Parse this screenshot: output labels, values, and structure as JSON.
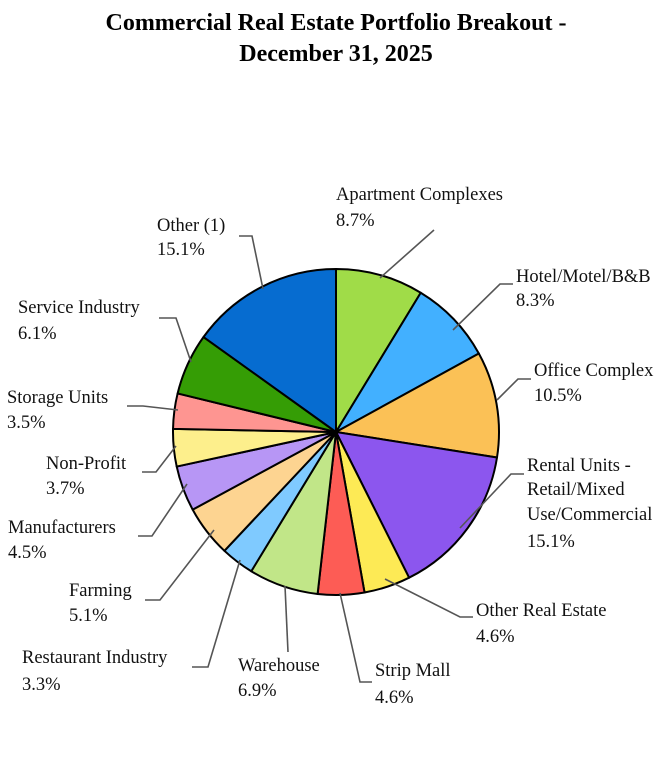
{
  "chart_data": {
    "type": "pie",
    "title_line1": "Commercial Real Estate Portfolio Breakout -",
    "title_line2": "December 31, 2025",
    "slices": [
      {
        "label": "Apartment Complexes",
        "value": 8.7,
        "value_text": "8.7%",
        "color": "#a0dc48"
      },
      {
        "label": "Hotel/Motel/B&B",
        "value": 8.3,
        "value_text": "8.3%",
        "color": "#42b0ff"
      },
      {
        "label": "Office Complex",
        "value": 10.5,
        "value_text": "10.5%",
        "color": "#fbc156"
      },
      {
        "label": "Rental Units - Retail/Mixed Use/Commercial",
        "value": 15.1,
        "value_text": "15.1%",
        "color": "#8c56ee"
      },
      {
        "label": "Other  Real Estate",
        "value": 4.6,
        "value_text": "4.6%",
        "color": "#fdea55"
      },
      {
        "label": "Strip Mall",
        "value": 4.6,
        "value_text": "4.6%",
        "color": "#fd5c55"
      },
      {
        "label": "Warehouse",
        "value": 6.9,
        "value_text": "6.9%",
        "color": "#c1e688"
      },
      {
        "label": "Restaurant Industry",
        "value": 3.3,
        "value_text": "3.3%",
        "color": "#7fcaff"
      },
      {
        "label": "Farming",
        "value": 5.1,
        "value_text": "5.1%",
        "color": "#fdd491"
      },
      {
        "label": "Manufacturers",
        "value": 4.5,
        "value_text": "4.5%",
        "color": "#b796f5"
      },
      {
        "label": "Non-Profit",
        "value": 3.7,
        "value_text": "3.7%",
        "color": "#fdef8c"
      },
      {
        "label": "Storage Units",
        "value": 3.5,
        "value_text": "3.5%",
        "color": "#fe9591"
      },
      {
        "label": "Service Industry",
        "value": 6.1,
        "value_text": "6.1%",
        "color": "#359d05"
      },
      {
        "label": "Other (1)",
        "value": 15.1,
        "value_text": "15.1%",
        "color": "#066cd0"
      }
    ]
  }
}
